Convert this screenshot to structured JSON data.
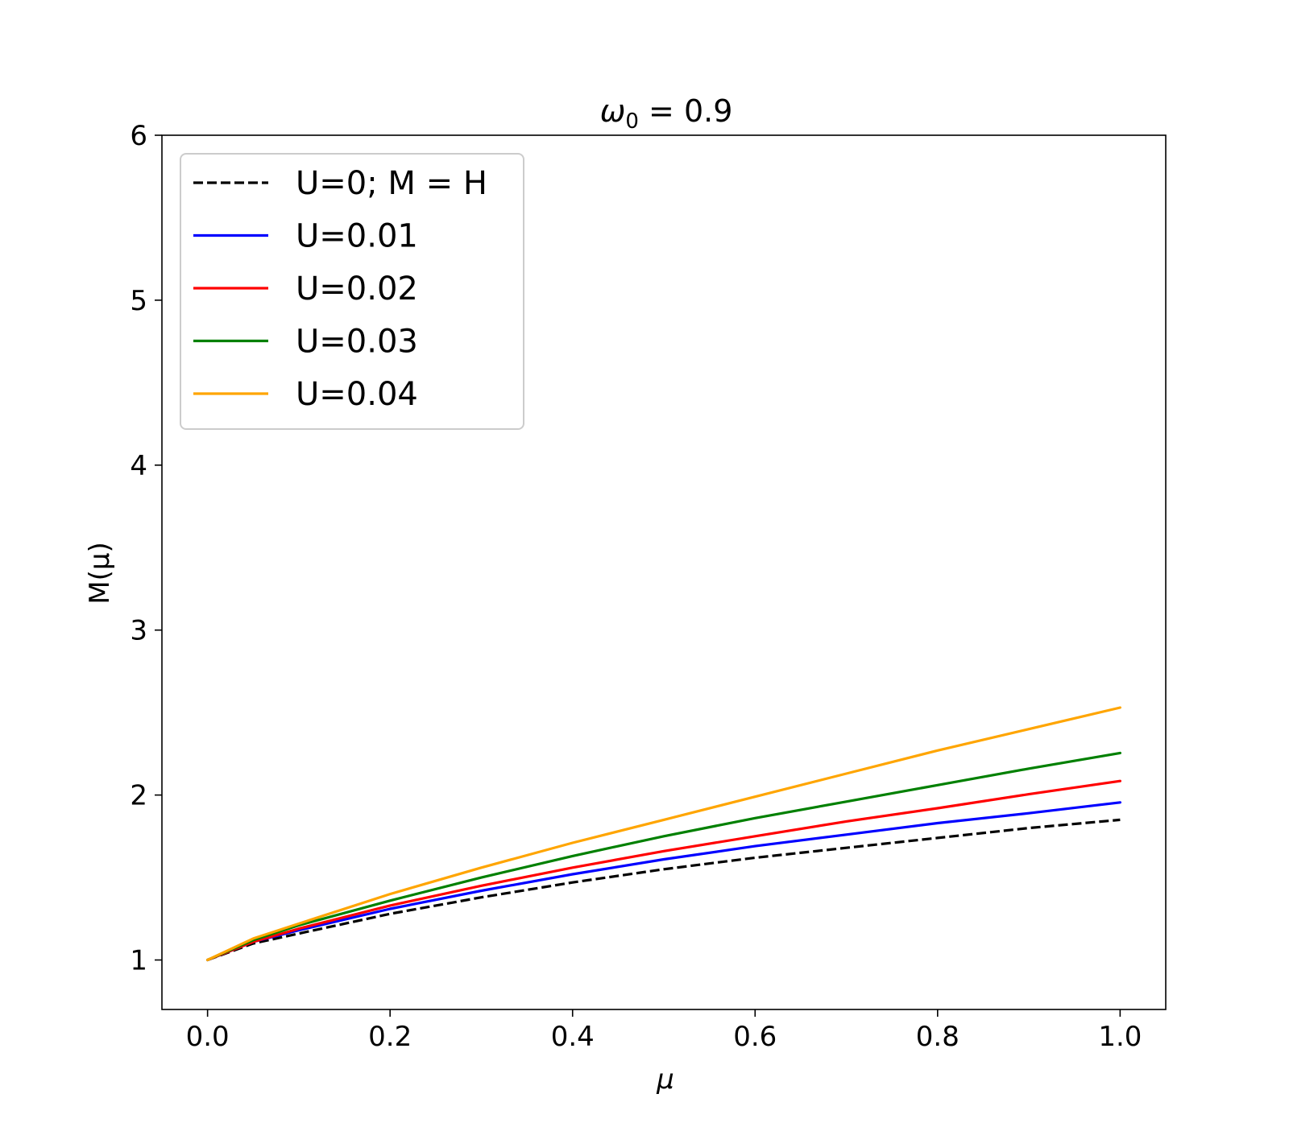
{
  "chart_data": {
    "type": "line",
    "title": "ω₀ = 0.9",
    "title_parts": {
      "symbol": "ω",
      "subscript": "0",
      "rest": " = 0.9"
    },
    "xlabel": "μ",
    "ylabel": "M(μ)",
    "xlim": [
      -0.05,
      1.05
    ],
    "ylim": [
      0.7,
      6.0
    ],
    "xticks": [
      0.0,
      0.2,
      0.4,
      0.6,
      0.8,
      1.0
    ],
    "xtick_labels": [
      "0.0",
      "0.2",
      "0.4",
      "0.6",
      "0.8",
      "1.0"
    ],
    "yticks": [
      1,
      2,
      3,
      4,
      5,
      6
    ],
    "ytick_labels": [
      "1",
      "2",
      "3",
      "4",
      "5",
      "6"
    ],
    "grid": false,
    "legend_position": "top-left",
    "x": [
      0.0,
      0.05,
      0.1,
      0.2,
      0.3,
      0.4,
      0.5,
      0.6,
      0.7,
      0.8,
      0.9,
      1.0
    ],
    "series": [
      {
        "name": "U=0; M = H",
        "color": "#000000",
        "dash": true,
        "values": [
          1.0,
          1.1,
          1.16,
          1.28,
          1.38,
          1.47,
          1.55,
          1.62,
          1.68,
          1.74,
          1.8,
          1.85
        ]
      },
      {
        "name": "U=0.01",
        "color": "#0000ff",
        "dash": false,
        "values": [
          1.0,
          1.11,
          1.18,
          1.31,
          1.42,
          1.52,
          1.61,
          1.69,
          1.76,
          1.83,
          1.89,
          1.955
        ]
      },
      {
        "name": "U=0.02",
        "color": "#ff0000",
        "dash": false,
        "values": [
          1.0,
          1.11,
          1.19,
          1.33,
          1.45,
          1.56,
          1.66,
          1.75,
          1.84,
          1.92,
          2.005,
          2.085
        ]
      },
      {
        "name": "U=0.03",
        "color": "#008000",
        "dash": false,
        "values": [
          1.0,
          1.12,
          1.21,
          1.36,
          1.5,
          1.63,
          1.75,
          1.86,
          1.96,
          2.06,
          2.16,
          2.255
        ]
      },
      {
        "name": "U=0.04",
        "color": "#ffa500",
        "dash": false,
        "values": [
          1.0,
          1.13,
          1.22,
          1.4,
          1.56,
          1.71,
          1.85,
          1.99,
          2.13,
          2.27,
          2.4,
          2.53
        ]
      }
    ]
  }
}
